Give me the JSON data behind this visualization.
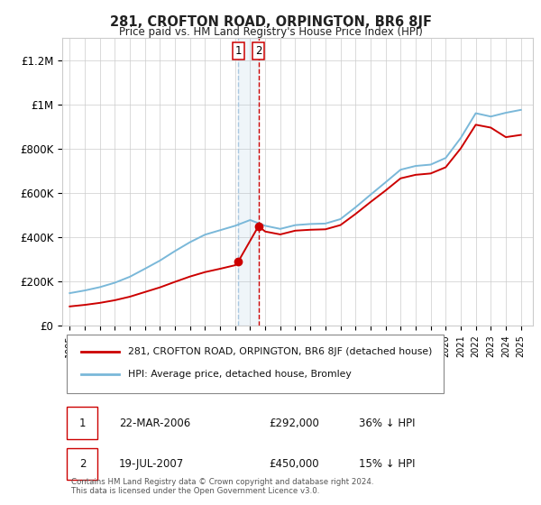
{
  "title": "281, CROFTON ROAD, ORPINGTON, BR6 8JF",
  "subtitle": "Price paid vs. HM Land Registry's House Price Index (HPI)",
  "ylim": [
    0,
    1300000
  ],
  "yticks": [
    0,
    200000,
    400000,
    600000,
    800000,
    1000000,
    1200000
  ],
  "ytick_labels": [
    "£0",
    "£200K",
    "£400K",
    "£600K",
    "£800K",
    "£1M",
    "£1.2M"
  ],
  "tx1_x": 2006.22,
  "tx2_x": 2007.55,
  "tx1_y": 292000,
  "tx2_y": 450000,
  "tx1_date": "22-MAR-2006",
  "tx2_date": "19-JUL-2007",
  "tx1_price": "£292,000",
  "tx2_price": "£450,000",
  "tx1_pct": "36% ↓ HPI",
  "tx2_pct": "15% ↓ HPI",
  "legend_property": "281, CROFTON ROAD, ORPINGTON, BR6 8JF (detached house)",
  "legend_hpi": "HPI: Average price, detached house, Bromley",
  "copyright": "Contains HM Land Registry data © Crown copyright and database right 2024.\nThis data is licensed under the Open Government Licence v3.0.",
  "hpi_color": "#7ab8d9",
  "property_color": "#cc0000",
  "marker_box_color": "#cc0000",
  "vline1_color": "#aac8e0",
  "vline2_color": "#cc0000",
  "background_color": "#ffffff",
  "grid_color": "#cccccc",
  "xlim_left": 1994.5,
  "xlim_right": 2025.8,
  "years_hpi": [
    1995,
    1996,
    1997,
    1998,
    1999,
    2000,
    2001,
    2002,
    2003,
    2004,
    2005,
    2006,
    2007,
    2008,
    2009,
    2010,
    2011,
    2012,
    2013,
    2014,
    2015,
    2016,
    2017,
    2018,
    2019,
    2020,
    2021,
    2022,
    2023,
    2024,
    2025
  ],
  "hpi_values": [
    148000,
    160000,
    175000,
    195000,
    222000,
    258000,
    295000,
    338000,
    378000,
    412000,
    432000,
    452000,
    478000,
    452000,
    438000,
    455000,
    460000,
    462000,
    482000,
    535000,
    592000,
    648000,
    705000,
    722000,
    728000,
    758000,
    848000,
    960000,
    945000,
    962000,
    975000
  ],
  "prop_years": [
    1995,
    1996,
    1997,
    1998,
    1999,
    2000,
    2001,
    2002,
    2003,
    2004,
    2005,
    2006,
    2006.22,
    2007.55,
    2008,
    2009,
    2010,
    2011,
    2012,
    2013,
    2014,
    2015,
    2016,
    2017,
    2018,
    2019,
    2020,
    2021,
    2022,
    2023,
    2024,
    2025
  ],
  "prop_values": [
    88000,
    95000,
    104000,
    116000,
    132000,
    153000,
    174000,
    199000,
    223000,
    243000,
    258000,
    274000,
    292000,
    450000,
    426000,
    413000,
    430000,
    434000,
    436000,
    455000,
    505000,
    559000,
    611000,
    666000,
    682000,
    688000,
    716000,
    801000,
    908000,
    895000,
    852000,
    862000
  ]
}
